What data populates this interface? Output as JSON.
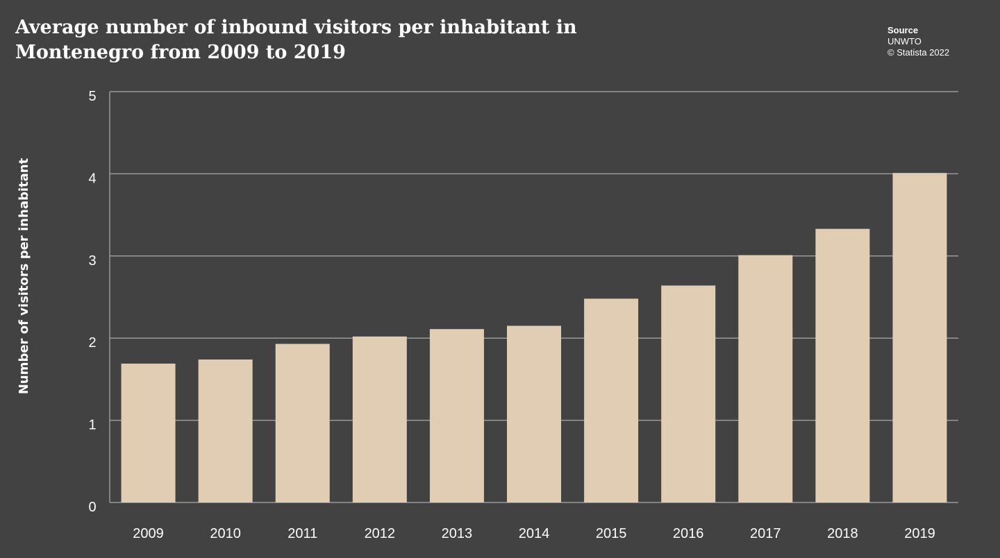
{
  "title_lines": [
    "Average number of inbound visitors per inhabitant in",
    "Montenegro from 2009 to 2019"
  ],
  "source": {
    "heading": "Source",
    "name": "UNWTO",
    "copyright": "© Statista 2022"
  },
  "colors": {
    "background": "#424242",
    "bar": "#e0cdb4",
    "grid": "#9a9a9a",
    "text": "#ffffff"
  },
  "chart_data": {
    "type": "bar",
    "title": "Average number of inbound visitors per inhabitant in Montenegro from 2009 to 2019",
    "categories": [
      "2009",
      "2010",
      "2011",
      "2012",
      "2013",
      "2014",
      "2015",
      "2016",
      "2017",
      "2018",
      "2019"
    ],
    "values": [
      1.69,
      1.74,
      1.93,
      2.02,
      2.11,
      2.15,
      2.48,
      2.64,
      3.01,
      3.33,
      4.01
    ],
    "xlabel": "",
    "ylabel": "Number of visitors per inhabitant",
    "ylim": [
      0,
      5
    ],
    "yticks": [
      "0",
      "1",
      "2",
      "3",
      "4",
      "5"
    ],
    "grid": true,
    "legend": "none"
  }
}
